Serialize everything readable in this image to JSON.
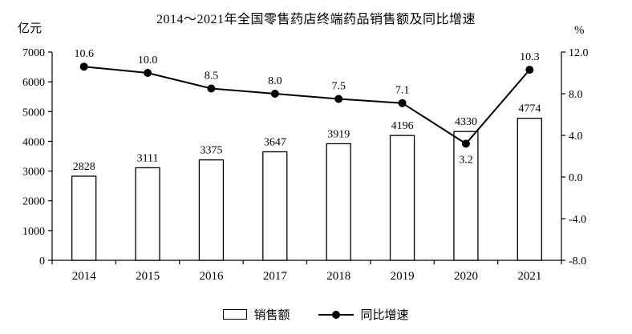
{
  "chart": {
    "title": "2014～2021年全国零售药店终端药品销售额及同比增速",
    "left_axis_unit": "亿元",
    "right_axis_unit": "%",
    "legend": {
      "bar_label": "销售额",
      "line_label": "同比增速"
    },
    "line_color": "#000000",
    "bar_fill": "#ffffff",
    "bar_stroke": "#000000"
  },
  "chart_data": {
    "type": "bar",
    "subtype": "bar+line-combo",
    "title": "2014～2021年全国零售药店终端药品销售额及同比增速",
    "categories": [
      "2014",
      "2015",
      "2016",
      "2017",
      "2018",
      "2019",
      "2020",
      "2021"
    ],
    "series": [
      {
        "name": "销售额",
        "type": "bar",
        "axis": "left",
        "values": [
          2828,
          3111,
          3375,
          3647,
          3919,
          4196,
          4330,
          4774
        ]
      },
      {
        "name": "同比增速",
        "type": "line",
        "axis": "right",
        "values": [
          10.6,
          10.0,
          8.5,
          8.0,
          7.5,
          7.1,
          3.2,
          10.3
        ]
      }
    ],
    "left_axis": {
      "label": "亿元",
      "min": 0,
      "max": 7000,
      "step": 1000,
      "ticks": [
        0,
        1000,
        2000,
        3000,
        4000,
        5000,
        6000,
        7000
      ]
    },
    "right_axis": {
      "label": "%",
      "min": -8.0,
      "max": 12.0,
      "step": 4.0,
      "ticks": [
        -8.0,
        -4.0,
        0.0,
        4.0,
        8.0,
        12.0
      ]
    },
    "grid": false,
    "legend_position": "bottom"
  }
}
